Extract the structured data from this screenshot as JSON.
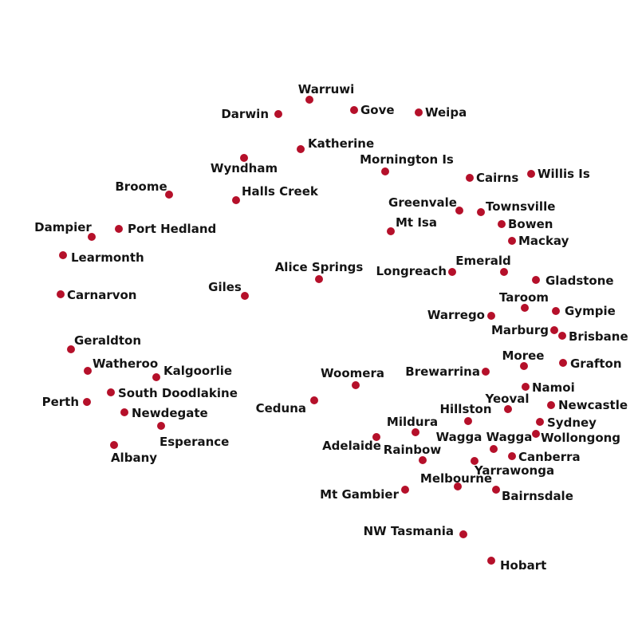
{
  "marker_color": "#b5102a",
  "label_color": "#141414",
  "background": "#ffffff",
  "stations": [
    {
      "id": "warruwi",
      "name": "Warruwi"
    },
    {
      "id": "darwin",
      "name": "Darwin"
    },
    {
      "id": "gove",
      "name": "Gove"
    },
    {
      "id": "weipa",
      "name": "Weipa"
    },
    {
      "id": "katherine",
      "name": "Katherine"
    },
    {
      "id": "wyndham",
      "name": "Wyndham"
    },
    {
      "id": "mornington-is",
      "name": "Mornington Is"
    },
    {
      "id": "cairns",
      "name": "Cairns"
    },
    {
      "id": "willis-is",
      "name": "Willis Is"
    },
    {
      "id": "broome",
      "name": "Broome"
    },
    {
      "id": "halls-creek",
      "name": "Halls Creek"
    },
    {
      "id": "greenvale",
      "name": "Greenvale"
    },
    {
      "id": "townsville",
      "name": "Townsville"
    },
    {
      "id": "mt-isa",
      "name": "Mt Isa"
    },
    {
      "id": "bowen",
      "name": "Bowen"
    },
    {
      "id": "dampier",
      "name": "Dampier"
    },
    {
      "id": "port-hedland",
      "name": "Port Hedland"
    },
    {
      "id": "mackay",
      "name": "Mackay"
    },
    {
      "id": "learmonth",
      "name": "Learmonth"
    },
    {
      "id": "alice-springs",
      "name": "Alice Springs"
    },
    {
      "id": "emerald",
      "name": "Emerald"
    },
    {
      "id": "longreach",
      "name": "Longreach"
    },
    {
      "id": "gladstone",
      "name": "Gladstone"
    },
    {
      "id": "giles",
      "name": "Giles"
    },
    {
      "id": "carnarvon",
      "name": "Carnarvon"
    },
    {
      "id": "taroom",
      "name": "Taroom"
    },
    {
      "id": "gympie",
      "name": "Gympie"
    },
    {
      "id": "warrego",
      "name": "Warrego"
    },
    {
      "id": "marburg",
      "name": "Marburg"
    },
    {
      "id": "brisbane",
      "name": "Brisbane"
    },
    {
      "id": "geraldton",
      "name": "Geraldton"
    },
    {
      "id": "moree",
      "name": "Moree"
    },
    {
      "id": "grafton",
      "name": "Grafton"
    },
    {
      "id": "watheroo",
      "name": "Watheroo"
    },
    {
      "id": "kalgoorlie",
      "name": "Kalgoorlie"
    },
    {
      "id": "brewarrina",
      "name": "Brewarrina"
    },
    {
      "id": "woomera",
      "name": "Woomera"
    },
    {
      "id": "namoi",
      "name": "Namoi"
    },
    {
      "id": "south-doodlakine",
      "name": "South Doodlakine"
    },
    {
      "id": "perth",
      "name": "Perth"
    },
    {
      "id": "yeoval",
      "name": "Yeoval"
    },
    {
      "id": "newcastle",
      "name": "Newcastle"
    },
    {
      "id": "ceduna",
      "name": "Ceduna"
    },
    {
      "id": "hillston",
      "name": "Hillston"
    },
    {
      "id": "newdegate",
      "name": "Newdegate"
    },
    {
      "id": "sydney",
      "name": "Sydney"
    },
    {
      "id": "mildura",
      "name": "Mildura"
    },
    {
      "id": "esperance",
      "name": "Esperance"
    },
    {
      "id": "wagga-wagga",
      "name": "Wagga Wagga"
    },
    {
      "id": "wollongong",
      "name": "Wollongong"
    },
    {
      "id": "adelaide",
      "name": "Adelaide"
    },
    {
      "id": "albany",
      "name": "Albany"
    },
    {
      "id": "rainbow",
      "name": "Rainbow"
    },
    {
      "id": "canberra",
      "name": "Canberra"
    },
    {
      "id": "yarrawonga",
      "name": "Yarrawonga"
    },
    {
      "id": "melbourne",
      "name": "Melbourne"
    },
    {
      "id": "mt-gambier",
      "name": "Mt Gambier"
    },
    {
      "id": "bairnsdale",
      "name": "Bairnsdale"
    },
    {
      "id": "nw-tasmania",
      "name": "NW Tasmania"
    },
    {
      "id": "hobart",
      "name": "Hobart"
    }
  ]
}
